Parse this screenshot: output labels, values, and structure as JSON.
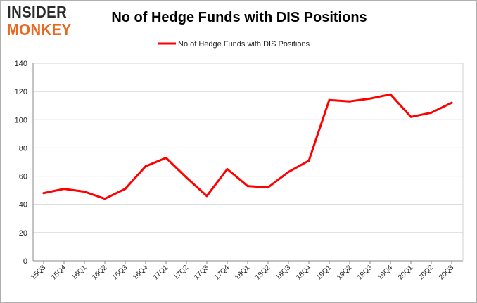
{
  "logo": {
    "line1": "INSIDER",
    "line2": "MONKEY"
  },
  "colors": {
    "series": "#ff0000",
    "grid": "#d0d0d0",
    "logo_dark": "#2b2b2b",
    "logo_accent": "#e8691f"
  },
  "chart_data": {
    "type": "line",
    "title": "No of Hedge Funds with DIS Positions",
    "xlabel": "",
    "ylabel": "",
    "ylim": [
      0,
      140
    ],
    "yticks": [
      0,
      20,
      40,
      60,
      80,
      100,
      120,
      140
    ],
    "grid": true,
    "legend_position": "top-center",
    "x": [
      "15Q3",
      "15Q4",
      "16Q1",
      "16Q2",
      "16Q3",
      "16Q4",
      "17Q1",
      "17Q2",
      "17Q3",
      "17Q4",
      "18Q1",
      "18Q2",
      "18Q3",
      "18Q4",
      "19Q1",
      "19Q2",
      "19Q3",
      "19Q4",
      "20Q1",
      "20Q2",
      "20Q3"
    ],
    "series": [
      {
        "name": "No of Hedge Funds with DIS Positions",
        "values": [
          48,
          51,
          49,
          44,
          51,
          67,
          73,
          59,
          46,
          65,
          53,
          52,
          63,
          71,
          114,
          113,
          115,
          118,
          102,
          105,
          112
        ]
      }
    ]
  }
}
